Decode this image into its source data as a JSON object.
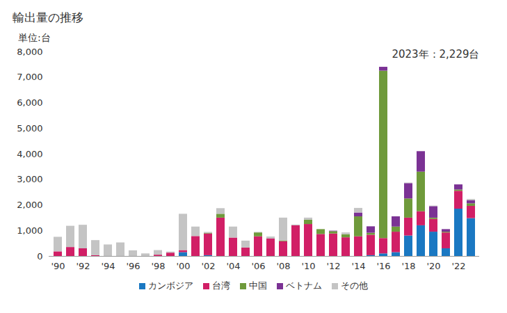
{
  "chart_data": {
    "type": "bar",
    "title": "輸出量の推移",
    "ylabel": "単位:台",
    "annotation": "2023年：2,229台",
    "stacked": true,
    "grid": false,
    "legend": "bottom",
    "categories": [
      "'90",
      null,
      "'92",
      null,
      "'94",
      null,
      "'96",
      null,
      "'98",
      null,
      "'00",
      null,
      "'02",
      null,
      "'04",
      null,
      "'06",
      null,
      "'08",
      null,
      "'10",
      null,
      "'12",
      null,
      "'14",
      null,
      "'16",
      null,
      "'18",
      null,
      "'20",
      null,
      "'22",
      null
    ],
    "ylim": [
      0,
      8000
    ],
    "yticks": [
      0,
      {
        "value": 1000,
        "label": "1,000"
      },
      {
        "value": 2000,
        "label": "2,000"
      },
      {
        "value": 3000,
        "label": "3,000"
      },
      {
        "value": 4000,
        "label": "4,000"
      },
      {
        "value": 5000,
        "label": "5,000"
      },
      {
        "value": 6000,
        "label": "6,000"
      },
      {
        "value": 7000,
        "label": "7,000"
      },
      {
        "value": 8000,
        "label": "8,000"
      }
    ],
    "series": [
      {
        "name": "カンボジア",
        "color": "#1a78c2",
        "values": [
          0,
          0,
          0,
          0,
          0,
          0,
          0,
          0,
          0,
          0,
          150,
          0,
          30,
          0,
          0,
          0,
          0,
          0,
          0,
          0,
          0,
          0,
          0,
          0,
          0,
          30,
          100,
          150,
          800,
          1200,
          950,
          300,
          1850,
          1480
        ]
      },
      {
        "name": "台湾",
        "color": "#d11f66",
        "values": [
          180,
          350,
          300,
          30,
          0,
          0,
          0,
          0,
          50,
          130,
          80,
          780,
          850,
          1500,
          720,
          330,
          770,
          680,
          580,
          1200,
          1250,
          860,
          880,
          730,
          770,
          800,
          600,
          800,
          700,
          550,
          500,
          620,
          700,
          480
        ]
      },
      {
        "name": "中国",
        "color": "#6f9a3b",
        "values": [
          0,
          0,
          0,
          0,
          0,
          0,
          0,
          0,
          0,
          0,
          0,
          0,
          20,
          150,
          0,
          0,
          150,
          0,
          30,
          0,
          170,
          190,
          90,
          120,
          780,
          80,
          6550,
          200,
          750,
          1550,
          50,
          30,
          50,
          100
        ]
      },
      {
        "name": "ベトナム",
        "color": "#7b3294",
        "values": [
          0,
          0,
          0,
          0,
          0,
          0,
          0,
          0,
          0,
          0,
          0,
          0,
          0,
          0,
          0,
          0,
          0,
          0,
          0,
          0,
          0,
          0,
          20,
          0,
          150,
          250,
          150,
          400,
          600,
          800,
          450,
          100,
          200,
          120
        ]
      },
      {
        "name": "その他",
        "color": "#c4c4c4",
        "values": [
          570,
          830,
          920,
          590,
          450,
          530,
          220,
          100,
          180,
          40,
          1420,
          370,
          40,
          220,
          430,
          270,
          20,
          80,
          890,
          30,
          80,
          0,
          0,
          70,
          180,
          0,
          0,
          0,
          20,
          0,
          20,
          0,
          0,
          49
        ]
      }
    ]
  }
}
